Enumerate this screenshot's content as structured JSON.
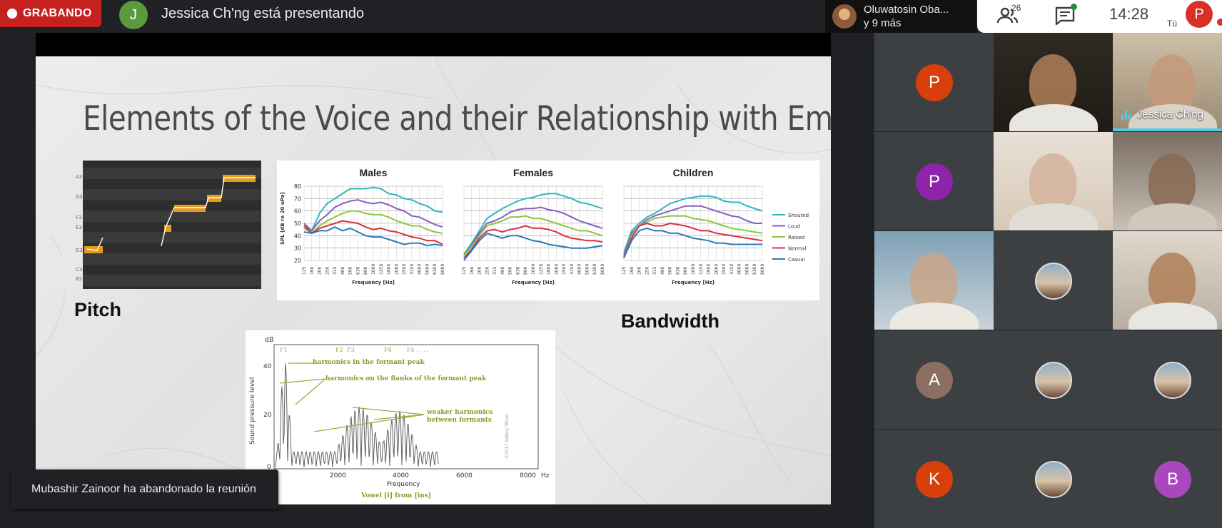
{
  "topbar": {
    "recording_label": "GRABANDO",
    "presenter_initial": "J",
    "presenter_text": "Jessica Ch'ng está presentando",
    "participants_chip": {
      "line1": "Oluwatosin Oba...",
      "line2": "y 9 más"
    },
    "participant_count": "26",
    "clock": "14:28",
    "me_label": "Tú",
    "me_initial": "P"
  },
  "slide": {
    "title": "Elements of the Voice and their Relationship with Emotion",
    "pitch_label": "Pitch",
    "bandwidth_label": "Bandwidth",
    "piano_keys": [
      "A3",
      "G3",
      "F3",
      "E3",
      "D3",
      "C3",
      "B2"
    ],
    "panels": [
      "Males",
      "Females",
      "Children"
    ],
    "chart_ylabel": "SPL [dB re 20 uPa]",
    "chart_xlabel": "Frequency [Hz]",
    "y_ticks": [
      "80",
      "70",
      "60",
      "50",
      "40",
      "30",
      "20"
    ],
    "x_ticks": [
      "125",
      "160",
      "200",
      "250",
      "315",
      "400",
      "500",
      "630",
      "800",
      "1000",
      "1250",
      "1600",
      "2000",
      "2500",
      "3150",
      "4000",
      "5000",
      "6300",
      "8000"
    ],
    "legend": [
      {
        "name": "Shouted",
        "color": "#2ab7c4"
      },
      {
        "name": "Loud",
        "color": "#8a5cbf"
      },
      {
        "name": "Raised",
        "color": "#8cc63f"
      },
      {
        "name": "Normal",
        "color": "#d9303f"
      },
      {
        "name": "Casual",
        "color": "#2a7ab8"
      }
    ],
    "formant": {
      "y_unit": "dB",
      "y_ticks": [
        "40",
        "20",
        "0"
      ],
      "x_ticks": [
        "0",
        "2000",
        "4000",
        "6000",
        "8000"
      ],
      "x_unit": "Hz",
      "ylabel": "Sound pressure level",
      "xlabel": "Frequency",
      "caption": "Vowel [i] from [ins]",
      "formant_labels": [
        "F1",
        "F2",
        "F3",
        "F4",
        "F5 . . . ."
      ],
      "annotations": [
        "harmonics in the formant peak",
        "harmonics on the flanks of the formant peak",
        "weaker harmonics",
        "between formants"
      ],
      "credit": "©2011 Sidney Wood"
    }
  },
  "toast": "Mubashir Zainoor ha abandonado la reunión",
  "tiles": [
    {
      "type": "avatar",
      "initial": "P",
      "color": "#d93f0b"
    },
    {
      "type": "video"
    },
    {
      "type": "video",
      "name": "Jessica Ch'ng"
    },
    {
      "type": "avatar",
      "initial": "P",
      "color": "#8e24aa"
    },
    {
      "type": "video"
    },
    {
      "type": "video"
    },
    {
      "type": "video"
    },
    {
      "type": "photo"
    },
    {
      "type": "video"
    },
    {
      "type": "avatar",
      "initial": "A",
      "color": "#8d6e63"
    },
    {
      "type": "photo"
    },
    {
      "type": "photo"
    },
    {
      "type": "avatar",
      "initial": "K",
      "color": "#d93f0b"
    },
    {
      "type": "photo"
    },
    {
      "type": "avatar",
      "initial": "B",
      "color": "#ab47bc"
    }
  ]
}
